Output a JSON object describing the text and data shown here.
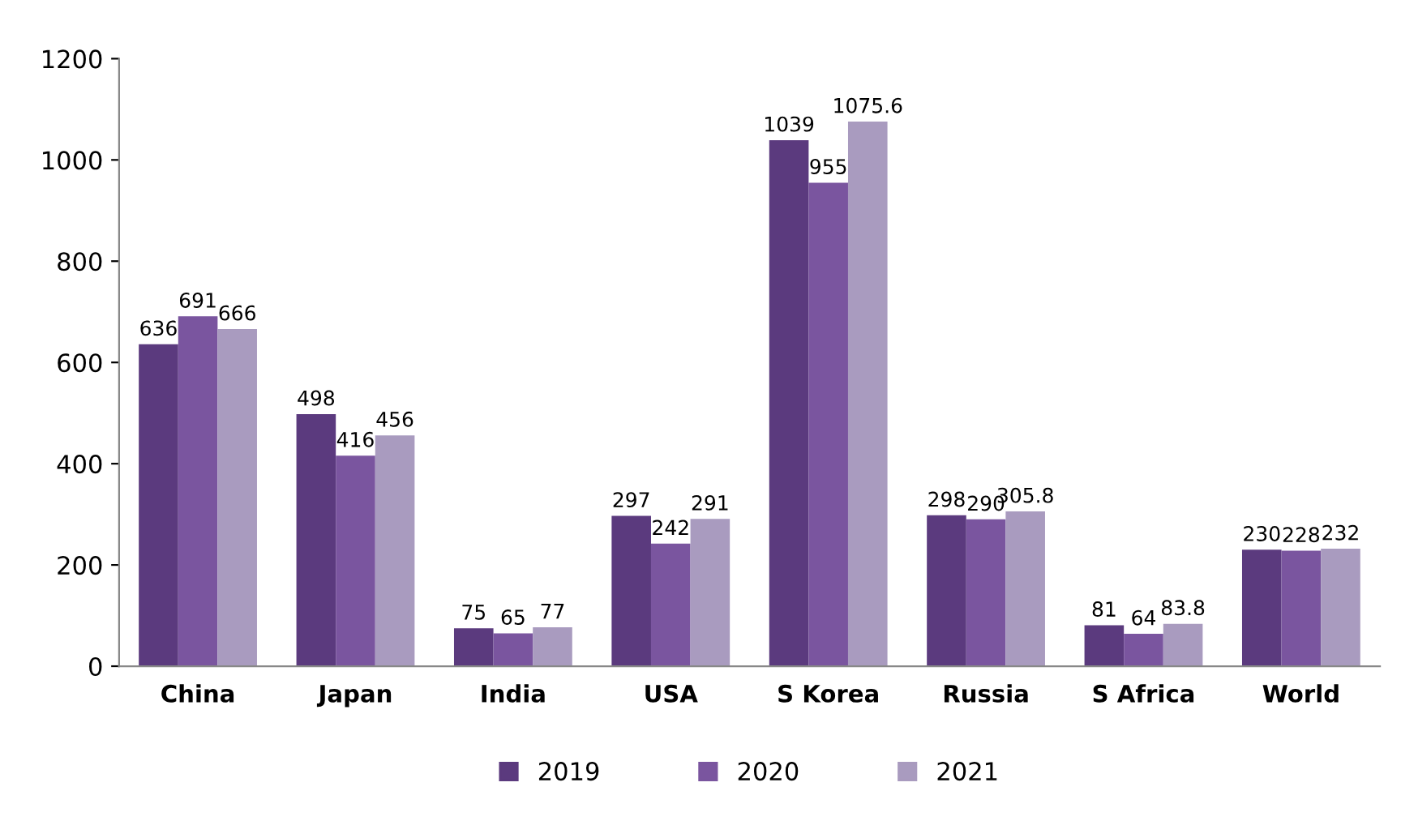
{
  "chart_data": {
    "type": "bar",
    "categories": [
      "China",
      "Japan",
      "India",
      "USA",
      "S Korea",
      "Russia",
      "S Africa",
      "World"
    ],
    "series": [
      {
        "name": "2019",
        "color": "#5b3a7e",
        "values": [
          636,
          498,
          75,
          297,
          1039,
          298,
          81,
          230
        ]
      },
      {
        "name": "2020",
        "color": "#7a559f",
        "values": [
          691,
          416,
          65,
          242,
          955,
          290,
          64,
          228
        ]
      },
      {
        "name": "2021",
        "color": "#a99bbf",
        "values": [
          666,
          456,
          77,
          291,
          1075.6,
          305.8,
          83.8,
          232
        ]
      }
    ],
    "ylim": [
      0,
      1200
    ],
    "yticks": [
      0,
      200,
      400,
      600,
      800,
      1000,
      1200
    ],
    "data_labels": true,
    "legend": "bottom",
    "grid": false
  }
}
